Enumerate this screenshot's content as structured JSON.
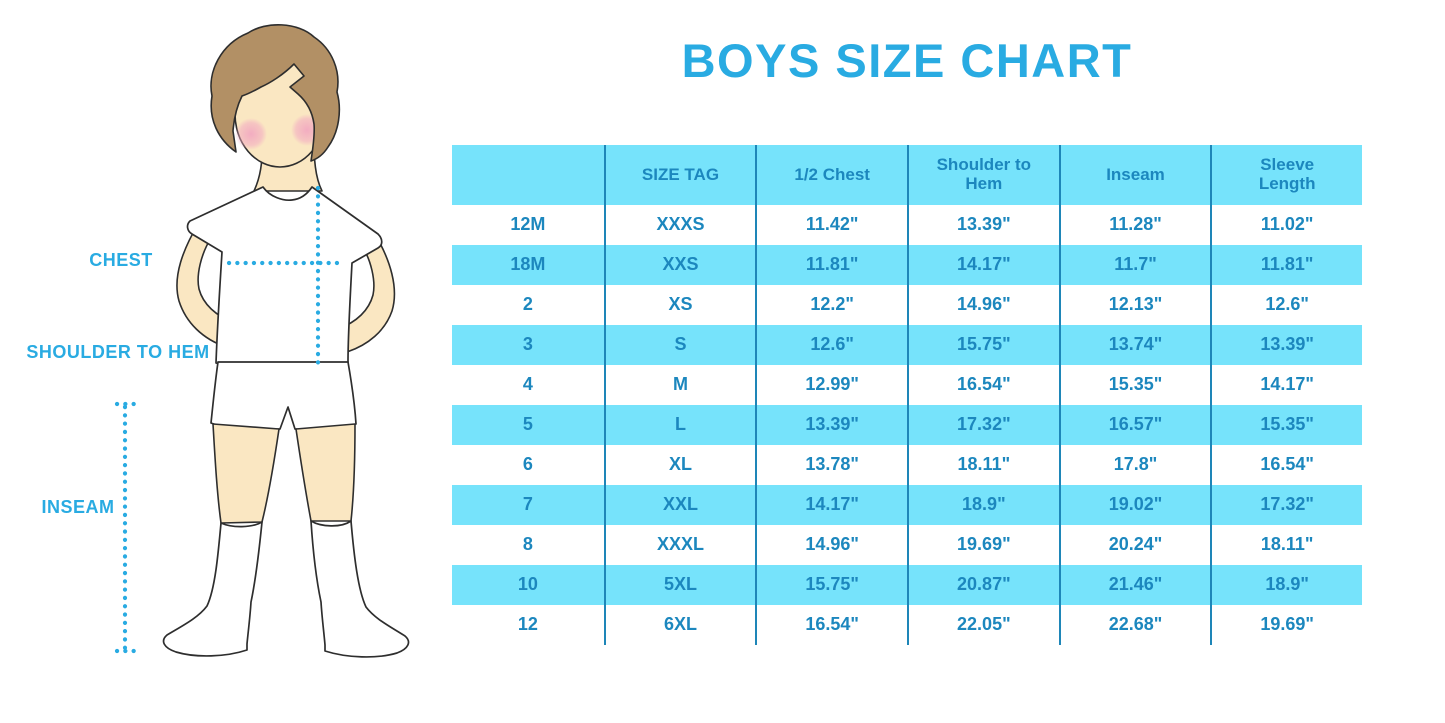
{
  "title": "BOYS SIZE CHART",
  "figure": {
    "description": "cartoon boy with hands on hips wearing white t-shirt, shorts and knee socks",
    "labels": {
      "chest": "CHEST",
      "shoulder_to_hem": "SHOULDER TO HEM",
      "inseam": "INSEAM"
    }
  },
  "colors": {
    "accent_blue": "#29ABE2",
    "row_cyan": "#76E3FB",
    "grid_line_blue": "#1E86B8",
    "cell_text_blue": "#1C87BE",
    "skin": "#FAE7C2",
    "hair": "#B29065",
    "blush": "#F2A9C1"
  },
  "chart_data": {
    "type": "table",
    "title": "BOYS SIZE CHART",
    "columns": [
      "",
      "SIZE TAG",
      "1/2 Chest",
      "Shoulder to Hem",
      "Inseam",
      "Sleeve Length"
    ],
    "rows": [
      [
        "12M",
        "XXXS",
        "11.42\"",
        "13.39\"",
        "11.28\"",
        "11.02\""
      ],
      [
        "18M",
        "XXS",
        "11.81\"",
        "14.17\"",
        "11.7\"",
        "11.81\""
      ],
      [
        "2",
        "XS",
        "12.2\"",
        "14.96\"",
        "12.13\"",
        "12.6\""
      ],
      [
        "3",
        "S",
        "12.6\"",
        "15.75\"",
        "13.74\"",
        "13.39\""
      ],
      [
        "4",
        "M",
        "12.99\"",
        "16.54\"",
        "15.35\"",
        "14.17\""
      ],
      [
        "5",
        "L",
        "13.39\"",
        "17.32\"",
        "16.57\"",
        "15.35\""
      ],
      [
        "6",
        "XL",
        "13.78\"",
        "18.11\"",
        "17.8\"",
        "16.54\""
      ],
      [
        "7",
        "XXL",
        "14.17\"",
        "18.9\"",
        "19.02\"",
        "17.32\""
      ],
      [
        "8",
        "XXXL",
        "14.96\"",
        "19.69\"",
        "20.24\"",
        "18.11\""
      ],
      [
        "10",
        "5XL",
        "15.75\"",
        "20.87\"",
        "21.46\"",
        "18.9\""
      ],
      [
        "12",
        "6XL",
        "16.54\"",
        "22.05\"",
        "22.68\"",
        "19.69\""
      ]
    ],
    "row_striping": "header and odd data rows cyan, even data rows white",
    "units": "inches"
  }
}
